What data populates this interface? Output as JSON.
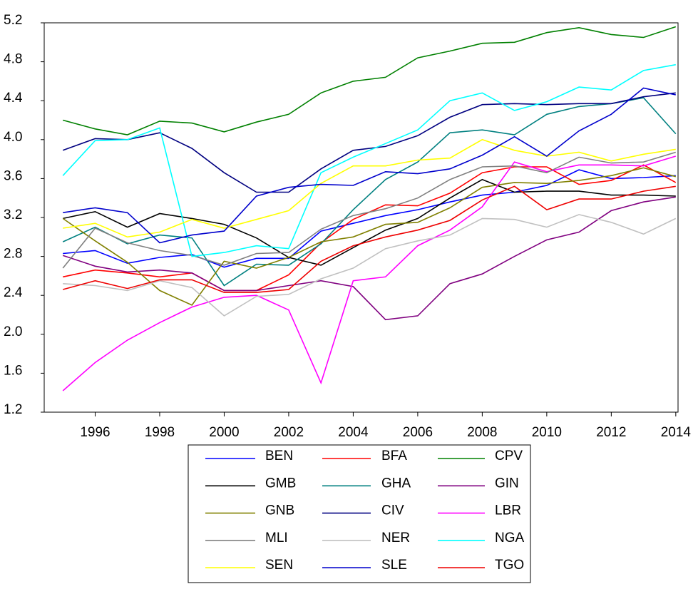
{
  "chart_data": {
    "type": "line",
    "x": [
      1995,
      1996,
      1997,
      1998,
      1999,
      2000,
      2001,
      2002,
      2003,
      2004,
      2005,
      2006,
      2007,
      2008,
      2009,
      2010,
      2011,
      2012,
      2013,
      2014
    ],
    "xlim": [
      1994.42,
      2014.07
    ],
    "xticks": [
      1996,
      1998,
      2000,
      2002,
      2004,
      2006,
      2008,
      2010,
      2012,
      2014
    ],
    "ylim": [
      1.2,
      5.2
    ],
    "yticks": [
      1.2,
      1.6,
      {
        "value": 2.0,
        "label": "2.0"
      },
      2.4,
      2.8,
      3.2,
      3.6,
      {
        "value": 4.0,
        "label": "4.0"
      },
      4.4,
      4.8,
      5.2
    ],
    "grid": false,
    "series": [
      {
        "name": "BEN",
        "color": "#0000ff",
        "values": [
          2.83,
          2.86,
          2.73,
          2.79,
          2.82,
          2.69,
          2.78,
          2.78,
          3.06,
          3.14,
          3.22,
          3.28,
          3.36,
          3.43,
          3.46,
          3.53,
          3.69,
          3.6,
          3.61,
          3.63
        ]
      },
      {
        "name": "BFA",
        "color": "#ff0000",
        "values": [
          2.59,
          2.66,
          2.63,
          2.59,
          2.63,
          2.45,
          2.45,
          2.61,
          2.94,
          3.18,
          3.33,
          3.32,
          3.45,
          3.66,
          3.72,
          3.72,
          3.54,
          3.58,
          3.74,
          3.56
        ]
      },
      {
        "name": "CPV",
        "color": "#008000",
        "values": [
          4.2,
          4.11,
          4.05,
          4.19,
          4.17,
          4.08,
          4.18,
          4.26,
          4.48,
          4.6,
          4.64,
          4.84,
          4.91,
          4.99,
          5.0,
          5.1,
          5.15,
          5.08,
          5.05,
          5.16
        ]
      },
      {
        "name": "GMB",
        "color": "#000000",
        "values": [
          3.19,
          3.26,
          3.1,
          3.24,
          3.19,
          3.13,
          2.99,
          2.79,
          2.71,
          2.89,
          3.07,
          3.19,
          3.4,
          3.59,
          3.46,
          3.47,
          3.47,
          3.43,
          3.43,
          3.42
        ]
      },
      {
        "name": "GHA",
        "color": "#008080",
        "values": [
          2.95,
          3.1,
          2.93,
          3.02,
          2.99,
          2.5,
          2.72,
          2.71,
          2.93,
          3.28,
          3.59,
          3.77,
          4.07,
          4.1,
          4.05,
          4.26,
          4.34,
          4.37,
          4.43,
          4.06
        ]
      },
      {
        "name": "GIN",
        "color": "#800080",
        "values": [
          2.81,
          2.7,
          2.64,
          2.66,
          2.63,
          2.45,
          2.45,
          2.5,
          2.55,
          2.49,
          2.15,
          2.19,
          2.52,
          2.62,
          2.8,
          2.97,
          3.05,
          3.27,
          3.36,
          3.41
        ]
      },
      {
        "name": "GNB",
        "color": "#808000",
        "values": [
          3.19,
          2.96,
          2.74,
          2.45,
          2.3,
          2.75,
          2.68,
          2.79,
          2.95,
          3.0,
          3.13,
          3.15,
          3.3,
          3.51,
          3.56,
          3.55,
          3.58,
          3.63,
          3.71,
          3.62
        ]
      },
      {
        "name": "CIV",
        "color": "#000080",
        "values": [
          3.89,
          4.01,
          4.0,
          4.07,
          3.91,
          3.66,
          3.46,
          3.46,
          3.7,
          3.89,
          3.93,
          4.04,
          4.23,
          4.36,
          4.37,
          4.36,
          4.37,
          4.37,
          4.44,
          4.48
        ]
      },
      {
        "name": "LBR",
        "color": "#ff00ff",
        "values": [
          1.42,
          1.71,
          1.94,
          2.12,
          2.28,
          2.38,
          2.4,
          2.25,
          1.5,
          2.55,
          2.59,
          2.91,
          3.07,
          3.31,
          3.77,
          3.67,
          3.74,
          3.74,
          3.73,
          3.83
        ]
      },
      {
        "name": "MLI",
        "color": "#808080",
        "values": [
          2.68,
          3.09,
          2.94,
          2.86,
          2.81,
          2.71,
          2.83,
          2.84,
          3.08,
          3.22,
          3.29,
          3.4,
          3.59,
          3.72,
          3.73,
          3.66,
          3.82,
          3.76,
          3.77,
          3.87
        ]
      },
      {
        "name": "NER",
        "color": "#c0c0c0",
        "values": [
          2.52,
          2.5,
          2.45,
          2.55,
          2.48,
          2.19,
          2.39,
          2.41,
          2.57,
          2.68,
          2.88,
          2.96,
          3.02,
          3.19,
          3.18,
          3.1,
          3.23,
          3.15,
          3.03,
          3.19
        ]
      },
      {
        "name": "NGA",
        "color": "#00ffff",
        "values": [
          3.63,
          3.99,
          4.0,
          4.12,
          2.8,
          2.84,
          2.91,
          2.88,
          3.66,
          3.82,
          3.96,
          4.1,
          4.4,
          4.48,
          4.3,
          4.39,
          4.54,
          4.51,
          4.71,
          4.77
        ]
      },
      {
        "name": "SEN",
        "color": "#ffff00",
        "values": [
          3.09,
          3.14,
          3.0,
          3.05,
          3.18,
          3.09,
          3.18,
          3.27,
          3.55,
          3.73,
          3.73,
          3.79,
          3.81,
          4.0,
          3.89,
          3.83,
          3.87,
          3.78,
          3.85,
          3.9
        ]
      },
      {
        "name": "SLE",
        "color": "#0000cc",
        "values": [
          3.25,
          3.3,
          3.25,
          2.94,
          3.02,
          3.06,
          3.42,
          3.51,
          3.54,
          3.53,
          3.67,
          3.65,
          3.7,
          3.84,
          4.03,
          3.83,
          4.09,
          4.26,
          4.53,
          4.46
        ]
      },
      {
        "name": "TGO",
        "color": "#ee0000",
        "values": [
          2.46,
          2.55,
          2.47,
          2.56,
          2.56,
          2.43,
          2.43,
          2.46,
          2.75,
          2.91,
          3.0,
          3.07,
          3.17,
          3.38,
          3.52,
          3.28,
          3.39,
          3.39,
          3.47,
          3.52
        ]
      }
    ]
  }
}
